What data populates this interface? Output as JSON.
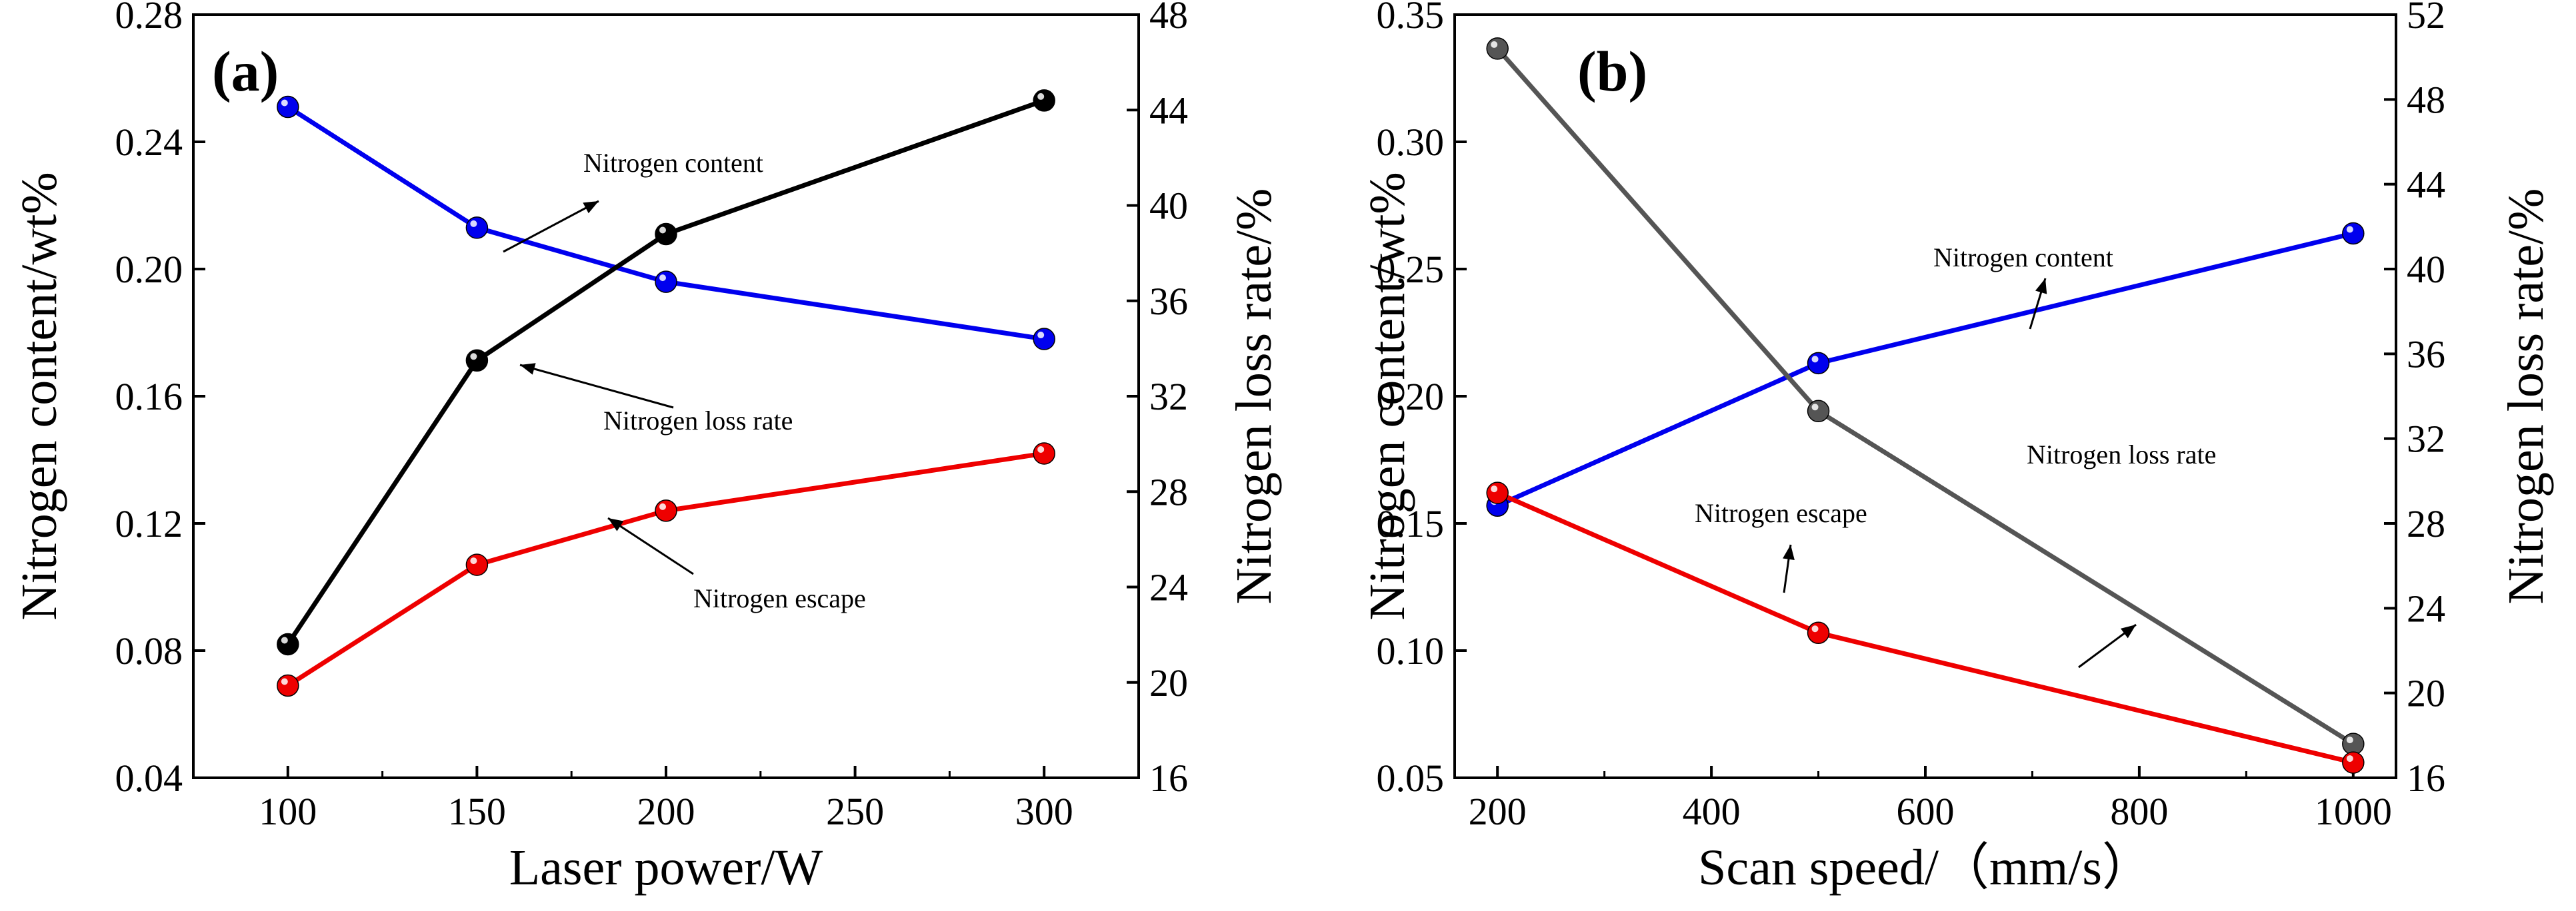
{
  "chart_data": [
    {
      "type": "line",
      "panel_label": "(a)",
      "xlabel": "Laser power/W",
      "ylabel_left": "Nitrogen content/wt%",
      "ylabel_right": "Nitrogen loss rate/%",
      "xlim": [
        75,
        325
      ],
      "xticks": [
        100,
        150,
        200,
        250,
        300
      ],
      "ylim_left": [
        0.04,
        0.28
      ],
      "yticks_left": [
        "0.04",
        "0.08",
        "0.12",
        "0.16",
        "0.20",
        "0.24",
        "0.28"
      ],
      "ylim_right": [
        16,
        48
      ],
      "yticks_right": [
        "16",
        "20",
        "24",
        "28",
        "32",
        "36",
        "40",
        "44",
        "48"
      ],
      "series": [
        {
          "name": "Nitrogen content",
          "axis": "left",
          "color": "#0000ee",
          "x": [
            100,
            150,
            200,
            300
          ],
          "y": [
            0.251,
            0.213,
            0.196,
            0.178
          ]
        },
        {
          "name": "Nitrogen loss rate",
          "axis": "right",
          "color": "#000000",
          "x": [
            100,
            150,
            200,
            300
          ],
          "y": [
            21.6,
            33.5,
            38.8,
            44.4
          ]
        },
        {
          "name": "Nitrogen escape",
          "axis": "left",
          "color": "#ee0000",
          "x": [
            100,
            150,
            200,
            300
          ],
          "y": [
            0.069,
            0.107,
            0.124,
            0.142
          ]
        }
      ],
      "annotations": [
        "Nitrogen content",
        "Nitrogen loss rate",
        "Nitrogen escape"
      ]
    },
    {
      "type": "line",
      "panel_label": "(b)",
      "xlabel": "Scan speed/（mm/s）",
      "ylabel_left": "Nitrogen content/wt%",
      "ylabel_right": "Nitrogen loss rate/%",
      "xlim": [
        160,
        1040
      ],
      "xticks": [
        200,
        400,
        600,
        800,
        1000
      ],
      "ylim_left": [
        0.05,
        0.35
      ],
      "yticks_left": [
        "0.05",
        "0.10",
        "0.15",
        "0.20",
        "0.25",
        "0.30",
        "0.35"
      ],
      "ylim_right": [
        16,
        52
      ],
      "yticks_right": [
        "16",
        "20",
        "24",
        "28",
        "32",
        "36",
        "40",
        "44",
        "48",
        "52"
      ],
      "series": [
        {
          "name": "Nitrogen content",
          "axis": "left",
          "color": "#0000ee",
          "x": [
            200,
            500,
            1000
          ],
          "y": [
            0.157,
            0.213,
            0.264
          ]
        },
        {
          "name": "Nitrogen loss rate",
          "axis": "right",
          "color": "#555555",
          "x": [
            200,
            500,
            1000
          ],
          "y": [
            50.4,
            33.3,
            17.6
          ]
        },
        {
          "name": "Nitrogen escape",
          "axis": "left",
          "color": "#ee0000",
          "x": [
            200,
            500,
            1000
          ],
          "y": [
            0.162,
            0.107,
            0.056
          ]
        }
      ],
      "annotations": [
        "Nitrogen content",
        "Nitrogen loss rate",
        "Nitrogen escape"
      ]
    }
  ]
}
